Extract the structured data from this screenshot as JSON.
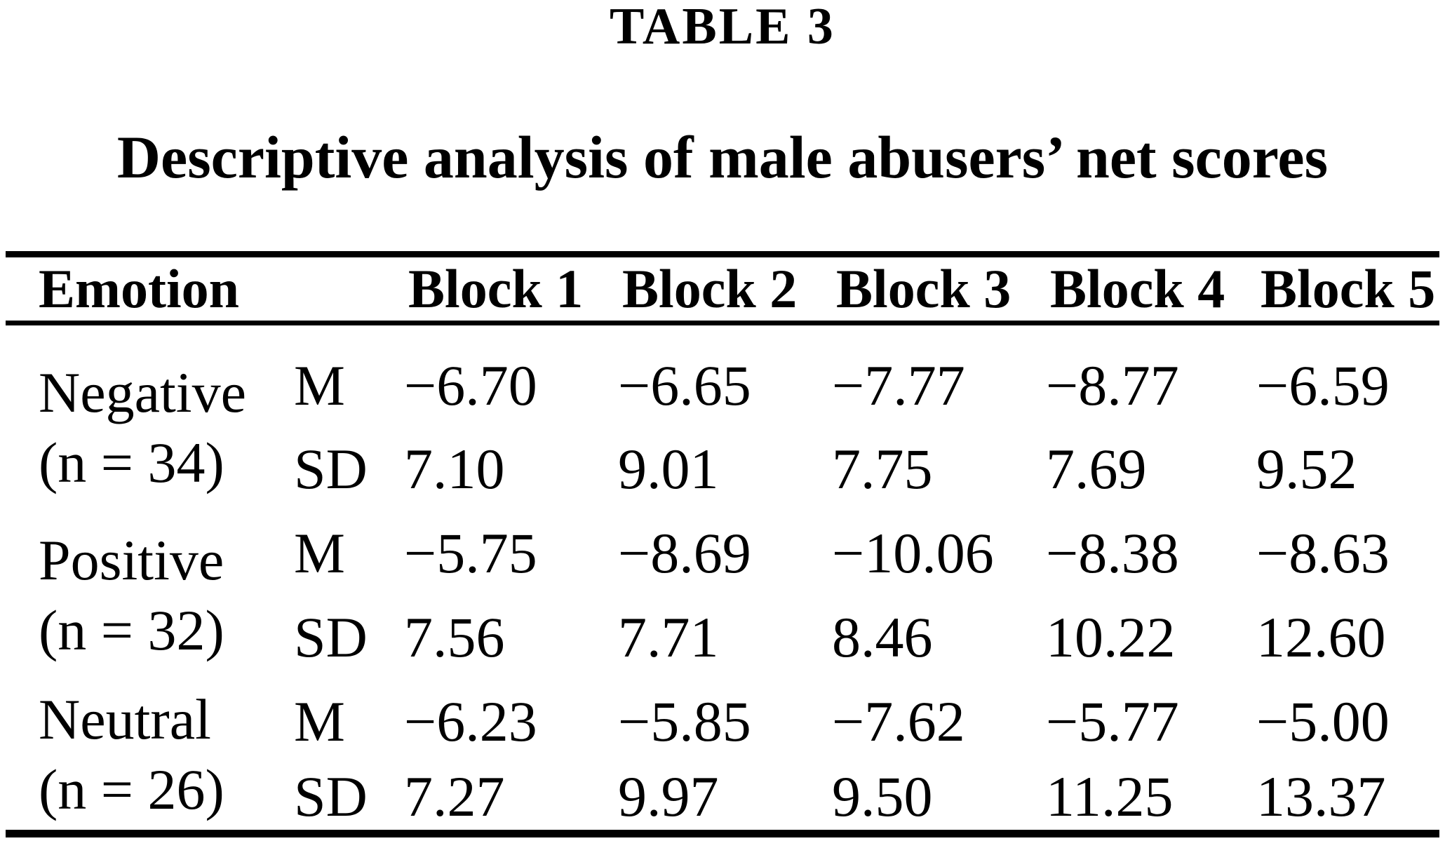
{
  "page": {
    "background": "#ffffff",
    "text_color": "#000000"
  },
  "table_label": "TABLE 3",
  "caption": "Descriptive analysis of male abusers’ net scores",
  "table": {
    "headers": {
      "emotion": "Emotion",
      "stat": "",
      "blocks": [
        "Block 1",
        "Block 2",
        "Block 3",
        "Block 4",
        "Block 5"
      ]
    },
    "groups": [
      {
        "emotion": "Negative",
        "n_label": "(n = 34)",
        "rows": [
          {
            "stat": "M",
            "values": [
              "−6.70",
              "−6.65",
              "−7.77",
              "−8.77",
              "−6.59"
            ]
          },
          {
            "stat": "SD",
            "values": [
              "7.10",
              "9.01",
              "7.75",
              "7.69",
              "9.52"
            ]
          }
        ]
      },
      {
        "emotion": "Positive",
        "n_label": "(n = 32)",
        "rows": [
          {
            "stat": "M",
            "values": [
              "−5.75",
              "−8.69",
              "−10.06",
              "−8.38",
              "−8.63"
            ]
          },
          {
            "stat": "SD",
            "values": [
              "7.56",
              "7.71",
              "8.46",
              "10.22",
              "12.60"
            ]
          }
        ]
      },
      {
        "emotion": "Neutral",
        "n_label": "(n = 26)",
        "rows": [
          {
            "stat": "M",
            "values": [
              "−6.23",
              "−5.85",
              "−7.62",
              "−5.77",
              "−5.00"
            ]
          },
          {
            "stat": "SD",
            "values": [
              "7.27",
              "9.97",
              "9.50",
              "11.25",
              "13.37"
            ]
          }
        ]
      }
    ]
  }
}
